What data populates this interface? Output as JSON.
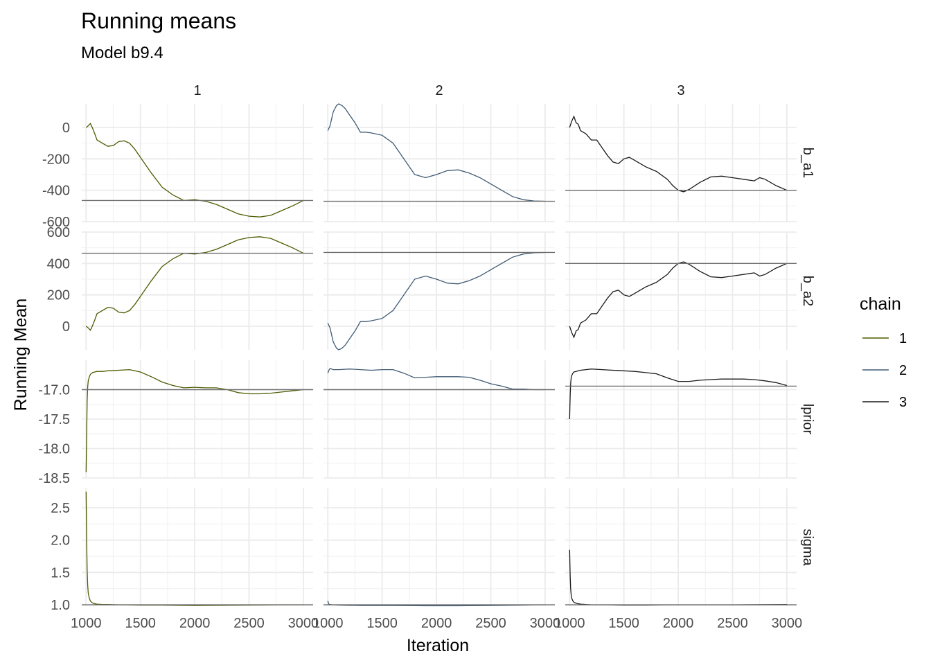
{
  "chart_data": {
    "type": "line",
    "title": "Running means",
    "subtitle": "Model b9.4",
    "xlabel": "Iteration",
    "ylabel": "Running Mean",
    "legend": {
      "title": "chain",
      "position": "right",
      "entries": [
        {
          "label": "1",
          "color": "#4d5a00"
        },
        {
          "label": "2",
          "color": "#3f5a73"
        },
        {
          "label": "3",
          "color": "#1a1a1a"
        }
      ]
    },
    "columns": [
      "1",
      "2",
      "3"
    ],
    "rows": [
      "b_a1",
      "b_a2",
      "lprior",
      "sigma"
    ],
    "x_ticks": [
      1000,
      1500,
      2000,
      2500,
      3000
    ],
    "x_tick_labels": [
      "1000",
      "1500",
      "2000",
      "2500",
      "3000"
    ],
    "xlim": [
      960,
      3090
    ],
    "grid": true,
    "panels_rows": [
      {
        "name": "b_a1",
        "ylim": [
          -600,
          150
        ],
        "y_ticks": [
          0,
          -200,
          -400,
          -600
        ],
        "y_tick_labels": [
          "0",
          "-200",
          "-400",
          "-600"
        ],
        "hlines": [
          -465,
          -470,
          -400
        ],
        "series": [
          {
            "name": "1",
            "x": [
              1000,
              1020,
              1040,
              1060,
              1080,
              1100,
              1150,
              1200,
              1250,
              1300,
              1350,
              1400,
              1450,
              1500,
              1600,
              1700,
              1800,
              1900,
              2000,
              2100,
              2200,
              2300,
              2400,
              2500,
              2600,
              2700,
              2800,
              2900,
              3000
            ],
            "y": [
              0,
              10,
              25,
              -5,
              -40,
              -80,
              -100,
              -120,
              -115,
              -90,
              -85,
              -100,
              -140,
              -190,
              -290,
              -380,
              -430,
              -465,
              -460,
              -470,
              -490,
              -520,
              -550,
              -565,
              -570,
              -560,
              -530,
              -500,
              -465
            ]
          },
          {
            "name": "2",
            "x": [
              1000,
              1020,
              1050,
              1080,
              1100,
              1130,
              1160,
              1200,
              1250,
              1300,
              1350,
              1400,
              1500,
              1600,
              1700,
              1800,
              1900,
              2000,
              2100,
              2200,
              2300,
              2400,
              2500,
              2600,
              2700,
              2800,
              2900,
              3000
            ],
            "y": [
              -20,
              10,
              100,
              140,
              150,
              140,
              120,
              80,
              30,
              -30,
              -30,
              -35,
              -50,
              -100,
              -200,
              -300,
              -320,
              -300,
              -275,
              -270,
              -290,
              -320,
              -360,
              -400,
              -440,
              -460,
              -468,
              -470
            ]
          },
          {
            "name": "3",
            "x": [
              1000,
              1020,
              1040,
              1060,
              1080,
              1100,
              1150,
              1200,
              1250,
              1300,
              1350,
              1400,
              1450,
              1500,
              1550,
              1600,
              1700,
              1800,
              1900,
              1950,
              2000,
              2050,
              2100,
              2200,
              2300,
              2400,
              2500,
              2600,
              2700,
              2750,
              2800,
              2900,
              3000
            ],
            "y": [
              0,
              40,
              70,
              30,
              20,
              -20,
              -40,
              -80,
              -80,
              -130,
              -180,
              -220,
              -230,
              -200,
              -190,
              -210,
              -250,
              -280,
              -330,
              -370,
              -400,
              -410,
              -395,
              -350,
              -315,
              -310,
              -320,
              -330,
              -340,
              -320,
              -330,
              -370,
              -400
            ]
          }
        ]
      },
      {
        "name": "b_a2",
        "ylim": [
          -150,
          600
        ],
        "y_ticks": [
          600,
          400,
          200,
          0
        ],
        "y_tick_labels": [
          "600",
          "400",
          "200",
          "0"
        ],
        "hlines": [
          465,
          470,
          400
        ],
        "series": [
          {
            "name": "1",
            "x": [
              1000,
              1020,
              1040,
              1060,
              1080,
              1100,
              1150,
              1200,
              1250,
              1300,
              1350,
              1400,
              1450,
              1500,
              1600,
              1700,
              1800,
              1900,
              2000,
              2100,
              2200,
              2300,
              2400,
              2500,
              2600,
              2700,
              2800,
              2900,
              3000
            ],
            "y": [
              0,
              -10,
              -25,
              5,
              40,
              80,
              100,
              120,
              115,
              90,
              85,
              100,
              140,
              190,
              290,
              380,
              430,
              465,
              460,
              470,
              490,
              520,
              550,
              565,
              570,
              560,
              530,
              500,
              465
            ]
          },
          {
            "name": "2",
            "x": [
              1000,
              1020,
              1050,
              1080,
              1100,
              1130,
              1160,
              1200,
              1250,
              1300,
              1350,
              1400,
              1500,
              1600,
              1700,
              1800,
              1900,
              2000,
              2100,
              2200,
              2300,
              2400,
              2500,
              2600,
              2700,
              2800,
              2900,
              3000
            ],
            "y": [
              20,
              -10,
              -100,
              -140,
              -150,
              -140,
              -120,
              -80,
              -30,
              30,
              30,
              35,
              50,
              100,
              200,
              300,
              320,
              300,
              275,
              270,
              290,
              320,
              360,
              400,
              440,
              460,
              468,
              470
            ]
          },
          {
            "name": "3",
            "x": [
              1000,
              1020,
              1040,
              1060,
              1080,
              1100,
              1150,
              1200,
              1250,
              1300,
              1350,
              1400,
              1450,
              1500,
              1550,
              1600,
              1700,
              1800,
              1900,
              1950,
              2000,
              2050,
              2100,
              2200,
              2300,
              2400,
              2500,
              2600,
              2700,
              2750,
              2800,
              2900,
              3000
            ],
            "y": [
              0,
              -40,
              -70,
              -30,
              -20,
              20,
              40,
              80,
              80,
              130,
              180,
              220,
              230,
              200,
              190,
              210,
              250,
              280,
              330,
              370,
              400,
              410,
              395,
              350,
              315,
              310,
              320,
              330,
              340,
              320,
              330,
              370,
              400
            ]
          }
        ]
      },
      {
        "name": "lprior",
        "ylim": [
          -18.5,
          -16.5
        ],
        "y_ticks": [
          -17.0,
          -17.5,
          -18.0,
          -18.5
        ],
        "y_tick_labels": [
          "-17.0",
          "-17.5",
          "-18.0",
          "-18.5"
        ],
        "hlines": [
          -17.0,
          -17.0,
          -16.94
        ],
        "series": [
          {
            "name": "1",
            "x": [
              1000,
              1005,
              1010,
              1015,
              1020,
              1030,
              1040,
              1060,
              1080,
              1100,
              1150,
              1200,
              1300,
              1400,
              1500,
              1600,
              1700,
              1800,
              1900,
              2000,
              2100,
              2200,
              2300,
              2400,
              2500,
              2600,
              2700,
              2800,
              2900,
              3000
            ],
            "y": [
              -18.4,
              -17.8,
              -17.2,
              -16.95,
              -16.85,
              -16.78,
              -16.74,
              -16.71,
              -16.7,
              -16.69,
              -16.69,
              -16.68,
              -16.67,
              -16.66,
              -16.7,
              -16.78,
              -16.87,
              -16.93,
              -16.97,
              -16.96,
              -16.97,
              -16.97,
              -17.0,
              -17.05,
              -17.07,
              -17.07,
              -17.06,
              -17.04,
              -17.02,
              -17.0
            ]
          },
          {
            "name": "2",
            "x": [
              1000,
              1010,
              1020,
              1050,
              1100,
              1200,
              1300,
              1400,
              1500,
              1600,
              1700,
              1800,
              1900,
              2000,
              2100,
              2200,
              2300,
              2400,
              2500,
              2600,
              2700,
              2800,
              2900,
              3000
            ],
            "y": [
              -16.72,
              -16.67,
              -16.64,
              -16.66,
              -16.66,
              -16.65,
              -16.66,
              -16.67,
              -16.66,
              -16.66,
              -16.72,
              -16.8,
              -16.79,
              -16.78,
              -16.78,
              -16.78,
              -16.79,
              -16.84,
              -16.9,
              -16.94,
              -16.99,
              -16.99,
              -17.0,
              -17.0
            ]
          },
          {
            "name": "3",
            "x": [
              1000,
              1005,
              1010,
              1015,
              1020,
              1030,
              1040,
              1060,
              1080,
              1100,
              1150,
              1200,
              1300,
              1400,
              1500,
              1600,
              1700,
              1800,
              1900,
              2000,
              2100,
              2200,
              2300,
              2400,
              2500,
              2600,
              2700,
              2800,
              2900,
              3000
            ],
            "y": [
              -17.5,
              -17.1,
              -16.9,
              -16.8,
              -16.76,
              -16.72,
              -16.7,
              -16.69,
              -16.68,
              -16.67,
              -16.66,
              -16.65,
              -16.66,
              -16.67,
              -16.68,
              -16.69,
              -16.71,
              -16.73,
              -16.8,
              -16.86,
              -16.86,
              -16.84,
              -16.83,
              -16.82,
              -16.82,
              -16.82,
              -16.83,
              -16.85,
              -16.88,
              -16.93
            ]
          }
        ]
      },
      {
        "name": "sigma",
        "ylim": [
          0.98,
          2.8
        ],
        "y_ticks": [
          2.5,
          2.0,
          1.5,
          1.0
        ],
        "y_tick_labels": [
          "2.5",
          "2.0",
          "1.5",
          "1.0"
        ],
        "hlines": [
          1.0,
          1.0,
          1.0
        ],
        "series": [
          {
            "name": "1",
            "x": [
              1000,
              1005,
              1010,
              1015,
              1020,
              1030,
              1040,
              1050,
              1070,
              1100,
              1150,
              1200,
              1300,
              1500,
              1700,
              2000,
              2500,
              3000
            ],
            "y": [
              2.75,
              2.0,
              1.55,
              1.3,
              1.18,
              1.1,
              1.06,
              1.04,
              1.02,
              1.01,
              1.005,
              1.005,
              1.0,
              0.995,
              0.995,
              0.99,
              0.995,
              1.0
            ]
          },
          {
            "name": "2",
            "x": [
              1000,
              1005,
              1010,
              1020,
              1040,
              1100,
              1300,
              1600,
              1900,
              2200,
              2500,
              2800,
              3000
            ],
            "y": [
              1.06,
              1.03,
              1.01,
              1.005,
              1.0,
              0.995,
              0.99,
              0.99,
              0.985,
              0.985,
              0.99,
              0.995,
              1.0
            ]
          },
          {
            "name": "3",
            "x": [
              1000,
              1005,
              1010,
              1015,
              1020,
              1030,
              1040,
              1050,
              1070,
              1100,
              1150,
              1200,
              1300,
              1500,
              1700,
              2000,
              2500,
              3000
            ],
            "y": [
              1.85,
              1.45,
              1.25,
              1.15,
              1.1,
              1.06,
              1.04,
              1.03,
              1.02,
              1.01,
              1.005,
              1.0,
              1.0,
              0.995,
              0.995,
              1.0,
              1.0,
              1.005
            ]
          }
        ]
      }
    ]
  }
}
